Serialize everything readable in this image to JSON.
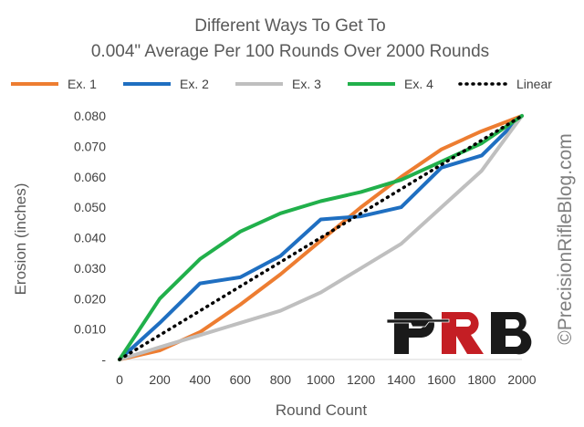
{
  "chart_data": {
    "type": "line",
    "title": [
      "Different Ways To Get To",
      "0.004\" Average Per 100 Rounds Over 2000 Rounds"
    ],
    "xlabel": "Round Count",
    "ylabel": "Erosion (inches)",
    "x": [
      0,
      200,
      400,
      600,
      800,
      1000,
      1200,
      1400,
      1600,
      1800,
      2000
    ],
    "x_tick_labels": [
      "0",
      "200",
      "400",
      "600",
      "800",
      "1000",
      "1200",
      "1400",
      "1600",
      "1800",
      "2000"
    ],
    "ylim": [
      0,
      0.08
    ],
    "y_ticks": [
      0,
      0.01,
      0.02,
      0.03,
      0.04,
      0.05,
      0.06,
      0.07,
      0.08
    ],
    "y_tick_labels": [
      "-",
      "0.010",
      "0.020",
      "0.030",
      "0.040",
      "0.050",
      "0.060",
      "0.070",
      "0.080"
    ],
    "grid": false,
    "legend_position": "top",
    "series": [
      {
        "name": "Ex. 1",
        "color": "#ed7d31",
        "style": "solid",
        "values": [
          0,
          0.003,
          0.009,
          0.018,
          0.028,
          0.039,
          0.05,
          0.06,
          0.069,
          0.075,
          0.08
        ]
      },
      {
        "name": "Ex. 2",
        "color": "#1f6fc1",
        "style": "solid",
        "values": [
          0,
          0.012,
          0.025,
          0.027,
          0.034,
          0.046,
          0.047,
          0.05,
          0.063,
          0.067,
          0.08
        ]
      },
      {
        "name": "Ex. 3",
        "color": "#bfbfbf",
        "style": "solid",
        "values": [
          0,
          0.004,
          0.008,
          0.012,
          0.016,
          0.022,
          0.03,
          0.038,
          0.05,
          0.062,
          0.08
        ]
      },
      {
        "name": "Ex. 4",
        "color": "#21b04b",
        "style": "solid",
        "values": [
          0,
          0.02,
          0.033,
          0.042,
          0.048,
          0.052,
          0.055,
          0.059,
          0.065,
          0.071,
          0.08
        ]
      },
      {
        "name": "Linear",
        "color": "#000000",
        "style": "dotted",
        "values": [
          0,
          0.008,
          0.016,
          0.024,
          0.032,
          0.04,
          0.048,
          0.056,
          0.064,
          0.072,
          0.08
        ]
      }
    ]
  },
  "watermark": "©PrecisionRifleBlog.com",
  "logo": {
    "name": "prb-logo-icon",
    "letters": "PRB",
    "colors": {
      "p": "#1a1a1a",
      "r": "#c41e24",
      "b": "#1a1a1a"
    }
  }
}
